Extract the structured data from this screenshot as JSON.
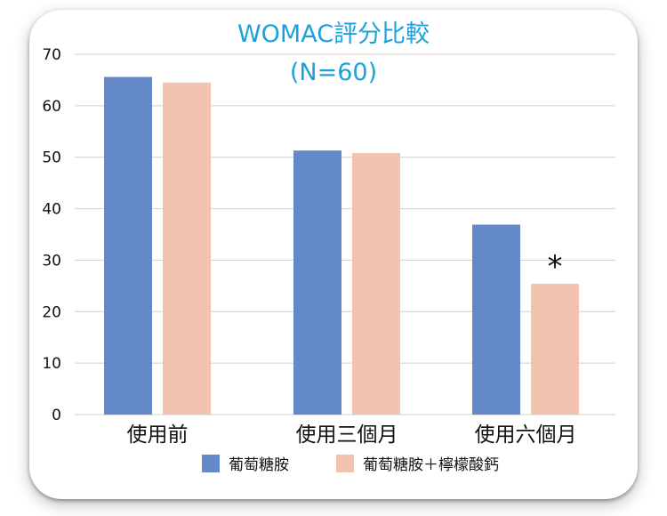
{
  "chart_data": {
    "type": "bar",
    "title": "WOMAC評分比較",
    "subtitle": "(N=60)",
    "categories": [
      "使用前",
      "使用三個月",
      "使用六個月"
    ],
    "series": [
      {
        "name": "葡萄糖胺",
        "values": [
          65.6,
          51.3,
          36.9
        ],
        "color": "#6489c8"
      },
      {
        "name": "葡萄糖胺＋檸檬酸鈣",
        "values": [
          64.5,
          50.8,
          25.4
        ],
        "color": "#f2c3ae"
      }
    ],
    "ylim": [
      0,
      70
    ],
    "yticks": [
      0,
      10,
      20,
      30,
      40,
      50,
      60,
      70
    ],
    "grid": true,
    "legend_position": "bottom",
    "annotations": [
      {
        "text": "*",
        "category": "使用六個月",
        "series": "葡萄糖胺＋檸檬酸鈣"
      }
    ]
  },
  "colors": {
    "title": "#1ca1dc",
    "grid": "#cfcfcf",
    "axis_text": "#111111"
  }
}
